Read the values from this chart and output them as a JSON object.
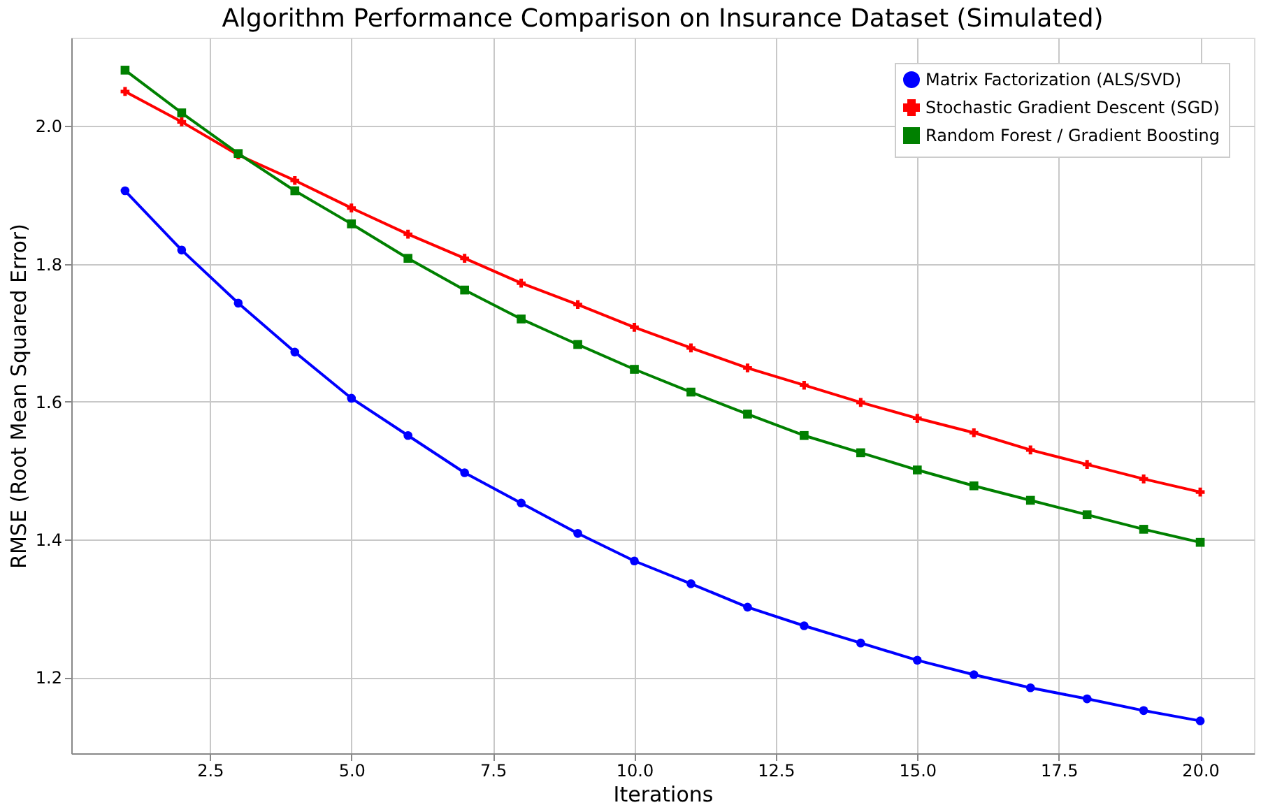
{
  "chart_data": {
    "type": "line",
    "title": "Algorithm Performance Comparison on Insurance Dataset (Simulated)",
    "xlabel": "Iterations",
    "ylabel": "RMSE (Root Mean Squared Error)",
    "x": [
      1,
      2,
      3,
      4,
      5,
      6,
      7,
      8,
      9,
      10,
      11,
      12,
      13,
      14,
      15,
      16,
      17,
      18,
      19,
      20
    ],
    "series": [
      {
        "name": "Matrix Factorization (ALS/SVD)",
        "color": "#0000ff",
        "marker": "circle",
        "values": [
          1.906,
          1.82,
          1.743,
          1.672,
          1.605,
          1.551,
          1.497,
          1.453,
          1.409,
          1.369,
          1.336,
          1.302,
          1.275,
          1.25,
          1.225,
          1.204,
          1.185,
          1.169,
          1.152,
          1.137
        ]
      },
      {
        "name": "Stochastic Gradient Descent (SGD)",
        "color": "#ff0000",
        "marker": "cross",
        "values": [
          2.05,
          2.006,
          1.958,
          1.921,
          1.881,
          1.843,
          1.808,
          1.772,
          1.741,
          1.708,
          1.678,
          1.649,
          1.624,
          1.599,
          1.576,
          1.555,
          1.53,
          1.509,
          1.488,
          1.469
        ]
      },
      {
        "name": "Random Forest / Gradient Boosting",
        "color": "#008000",
        "marker": "square",
        "values": [
          2.081,
          2.019,
          1.96,
          1.906,
          1.858,
          1.808,
          1.762,
          1.72,
          1.683,
          1.647,
          1.614,
          1.582,
          1.551,
          1.526,
          1.501,
          1.478,
          1.457,
          1.436,
          1.415,
          1.396
        ]
      }
    ],
    "xlim": [
      0.05,
      20.95
    ],
    "xticks": [
      2.5,
      {
        "value": 5,
        "label": "5.0"
      },
      7.5,
      {
        "value": 10,
        "label": "10.0"
      },
      12.5,
      {
        "value": 15,
        "label": "15.0"
      },
      17.5,
      {
        "value": 20,
        "label": "20.0"
      }
    ],
    "ylim": [
      1.09,
      2.128
    ],
    "yticks": [
      1.2,
      1.4,
      1.6,
      1.8,
      {
        "value": 2,
        "label": "2.0"
      }
    ],
    "grid": true,
    "legend": "top right",
    "line_style": "solid"
  }
}
